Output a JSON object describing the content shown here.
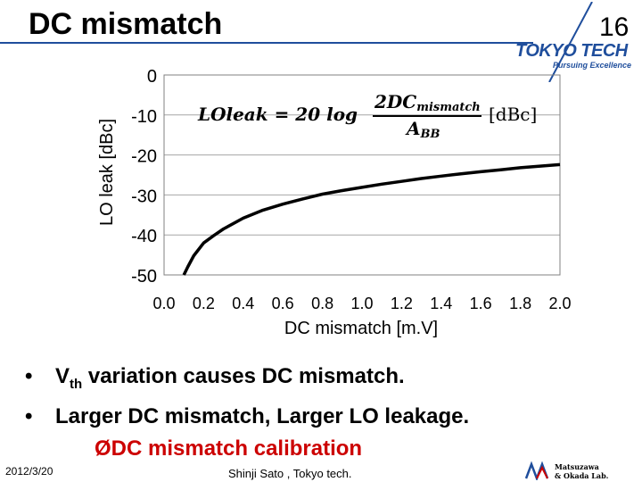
{
  "slide": {
    "title": "DC mismatch",
    "page_number": "16",
    "logo_text": "TOKYO TECH",
    "logo_tagline": "Pursuing Excellence"
  },
  "chart_data": {
    "type": "line",
    "xlabel": "DC mismatch [m.V]",
    "ylabel": "LO leak [dBc]",
    "xlim": [
      0.0,
      2.0
    ],
    "ylim": [
      -50,
      0
    ],
    "x_ticks": [
      "0.0",
      "0.2",
      "0.4",
      "0.6",
      "0.8",
      "1.0",
      "1.2",
      "1.4",
      "1.6",
      "1.8",
      "2.0"
    ],
    "y_ticks": [
      "0",
      "-10",
      "-20",
      "-30",
      "-40",
      "-50"
    ],
    "grid": "horizontal",
    "formula": {
      "lhs": "LOleak = 20 log",
      "numerator": "2DC",
      "numerator_sub": "mismatch",
      "denominator": "A",
      "denominator_sub": "BB",
      "unit": "[dBc]"
    },
    "series": [
      {
        "x": [
          0.1,
          0.12,
          0.15,
          0.2,
          0.25,
          0.3,
          0.4,
          0.5,
          0.6,
          0.7,
          0.8,
          0.9,
          1.0,
          1.1,
          1.2,
          1.3,
          1.4,
          1.5,
          1.6,
          1.7,
          1.8,
          1.9,
          2.0
        ],
        "y": [
          -50,
          -48,
          -45.2,
          -42,
          -40.2,
          -38.5,
          -35.8,
          -33.8,
          -32.3,
          -31.0,
          -29.8,
          -28.9,
          -28.1,
          -27.3,
          -26.6,
          -25.9,
          -25.3,
          -24.7,
          -24.2,
          -23.7,
          -23.2,
          -22.8,
          -22.4
        ]
      }
    ]
  },
  "bullets": {
    "item1_main": "V",
    "item1_sub": "th",
    "item1_rest": " variation causes DC mismatch.",
    "item2": "Larger DC mismatch, Larger LO leakage.",
    "sub_arrow": "Ø",
    "sub_item": "DC mismatch calibration"
  },
  "footer": {
    "date": "2012/3/20",
    "author": "Shinji Sato , Tokyo tech.",
    "lab_logo_line1": "Matsuzawa",
    "lab_logo_line2": "& Okada Lab."
  },
  "colors": {
    "accent": "#1f4e9c",
    "highlight": "#cc0000",
    "grid": "#a6a6a6",
    "curve": "#000000"
  }
}
